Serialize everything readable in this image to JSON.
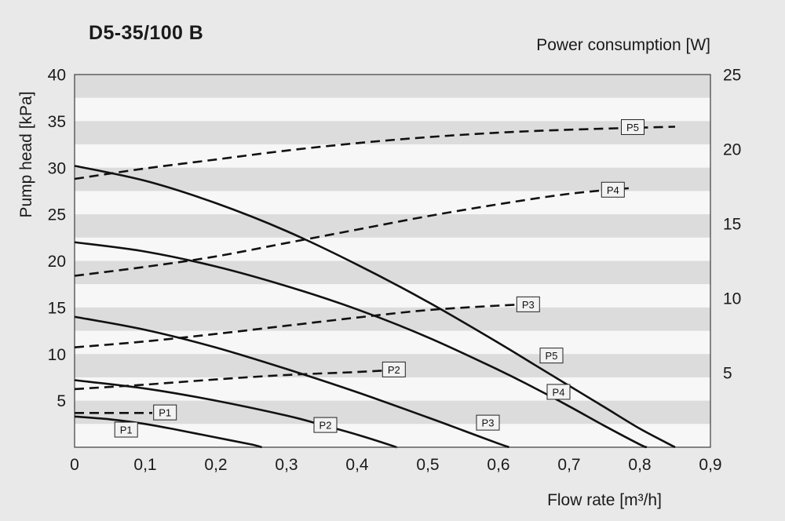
{
  "title": "D5-35/100 B",
  "colors": {
    "background": "#e9e9e9",
    "band_gray": "#dcdcdc",
    "band_light": "#f7f7f7",
    "curve": "#111111",
    "text": "#1a1a1a",
    "plot_border": "#4a4a4a",
    "label_box_bg": "#f2f2f2",
    "label_box_border": "#222222"
  },
  "chart_data": {
    "type": "line",
    "title": "D5-35/100 B",
    "x_label": "Flow rate [m³/h]",
    "y_left_label": "Pump head [kPa]",
    "y_right_label": "Power consumption [W]",
    "x_range": [
      0,
      0.9
    ],
    "x_tick_values": [
      0,
      0.1,
      0.2,
      0.3,
      0.4,
      0.5,
      0.6,
      0.7,
      0.8,
      0.9
    ],
    "x_tick_labels": [
      "0",
      "0,1",
      "0,2",
      "0,3",
      "0,4",
      "0,5",
      "0,6",
      "0,7",
      "0,8",
      "0,9"
    ],
    "y_left_range": [
      0,
      40
    ],
    "y_left_tick_values": [
      5,
      10,
      15,
      20,
      25,
      30,
      35,
      40
    ],
    "y_right_range": [
      0,
      25
    ],
    "y_right_tick_values": [
      5,
      10,
      15,
      20,
      25
    ],
    "band_step_kPa": 2.5,
    "grid": "horizontal-bands",
    "legend_position": "inline-curve-labels",
    "head_curves_kPa": [
      {
        "name": "P1",
        "style": "solid",
        "axis": "left",
        "points": [
          [
            0,
            3.3
          ],
          [
            0.05,
            3.0
          ],
          [
            0.1,
            2.5
          ],
          [
            0.15,
            1.8
          ],
          [
            0.2,
            1.05
          ],
          [
            0.25,
            0.3
          ],
          [
            0.265,
            0
          ]
        ],
        "label_at": [
          0.073,
          1.85
        ]
      },
      {
        "name": "P2",
        "style": "solid",
        "axis": "left",
        "points": [
          [
            0,
            7.2
          ],
          [
            0.1,
            6.3
          ],
          [
            0.2,
            5.0
          ],
          [
            0.3,
            3.4
          ],
          [
            0.35,
            2.4
          ],
          [
            0.4,
            1.35
          ],
          [
            0.45,
            0.15
          ],
          [
            0.455,
            0
          ]
        ],
        "label_at": [
          0.355,
          2.35
        ]
      },
      {
        "name": "P3",
        "style": "solid",
        "axis": "left",
        "points": [
          [
            0,
            14.0
          ],
          [
            0.1,
            12.6
          ],
          [
            0.2,
            10.7
          ],
          [
            0.3,
            8.4
          ],
          [
            0.4,
            5.9
          ],
          [
            0.5,
            3.2
          ],
          [
            0.55,
            1.8
          ],
          [
            0.6,
            0.4
          ],
          [
            0.615,
            0
          ]
        ],
        "label_at": [
          0.585,
          2.6
        ]
      },
      {
        "name": "P4",
        "style": "solid",
        "axis": "left",
        "points": [
          [
            0,
            22.0
          ],
          [
            0.1,
            21.0
          ],
          [
            0.2,
            19.4
          ],
          [
            0.3,
            17.3
          ],
          [
            0.4,
            14.8
          ],
          [
            0.5,
            11.8
          ],
          [
            0.6,
            8.3
          ],
          [
            0.65,
            6.4
          ],
          [
            0.7,
            4.4
          ],
          [
            0.75,
            2.3
          ],
          [
            0.8,
            0.3
          ],
          [
            0.81,
            0
          ]
        ],
        "label_at": [
          0.685,
          5.9
        ]
      },
      {
        "name": "P5",
        "style": "solid",
        "axis": "left",
        "points": [
          [
            0,
            30.2
          ],
          [
            0.1,
            28.6
          ],
          [
            0.2,
            26.2
          ],
          [
            0.3,
            23.2
          ],
          [
            0.4,
            19.6
          ],
          [
            0.5,
            15.6
          ],
          [
            0.6,
            11.2
          ],
          [
            0.65,
            8.9
          ],
          [
            0.7,
            6.6
          ],
          [
            0.75,
            4.3
          ],
          [
            0.8,
            2.0
          ],
          [
            0.85,
            0
          ]
        ],
        "label_at": [
          0.675,
          9.8
        ]
      }
    ],
    "power_curves_W": [
      {
        "name": "P1",
        "style": "dashed",
        "axis": "right",
        "points": [
          [
            0,
            2.3
          ],
          [
            0.11,
            2.3
          ]
        ],
        "label_at": [
          0.128,
          2.31
        ]
      },
      {
        "name": "P2",
        "style": "dashed",
        "axis": "right",
        "points": [
          [
            0,
            3.9
          ],
          [
            0.1,
            4.2
          ],
          [
            0.2,
            4.55
          ],
          [
            0.3,
            4.85
          ],
          [
            0.4,
            5.05
          ],
          [
            0.46,
            5.2
          ]
        ],
        "label_at": [
          0.452,
          5.19
        ]
      },
      {
        "name": "P3",
        "style": "dashed",
        "axis": "right",
        "points": [
          [
            0,
            6.7
          ],
          [
            0.1,
            7.1
          ],
          [
            0.2,
            7.6
          ],
          [
            0.3,
            8.15
          ],
          [
            0.4,
            8.7
          ],
          [
            0.5,
            9.2
          ],
          [
            0.6,
            9.5
          ],
          [
            0.65,
            9.6
          ]
        ],
        "label_at": [
          0.642,
          9.56
        ]
      },
      {
        "name": "P4",
        "style": "dashed",
        "axis": "right",
        "points": [
          [
            0,
            11.5
          ],
          [
            0.1,
            12.1
          ],
          [
            0.2,
            12.8
          ],
          [
            0.3,
            13.7
          ],
          [
            0.4,
            14.6
          ],
          [
            0.5,
            15.5
          ],
          [
            0.6,
            16.3
          ],
          [
            0.7,
            17.0
          ],
          [
            0.79,
            17.4
          ]
        ],
        "label_at": [
          0.762,
          17.25
        ]
      },
      {
        "name": "P5",
        "style": "dashed",
        "axis": "right",
        "points": [
          [
            0,
            18.0
          ],
          [
            0.1,
            18.7
          ],
          [
            0.2,
            19.3
          ],
          [
            0.3,
            19.9
          ],
          [
            0.4,
            20.4
          ],
          [
            0.5,
            20.8
          ],
          [
            0.6,
            21.1
          ],
          [
            0.7,
            21.3
          ],
          [
            0.85,
            21.5
          ]
        ],
        "label_at": [
          0.79,
          21.45
        ]
      }
    ]
  }
}
